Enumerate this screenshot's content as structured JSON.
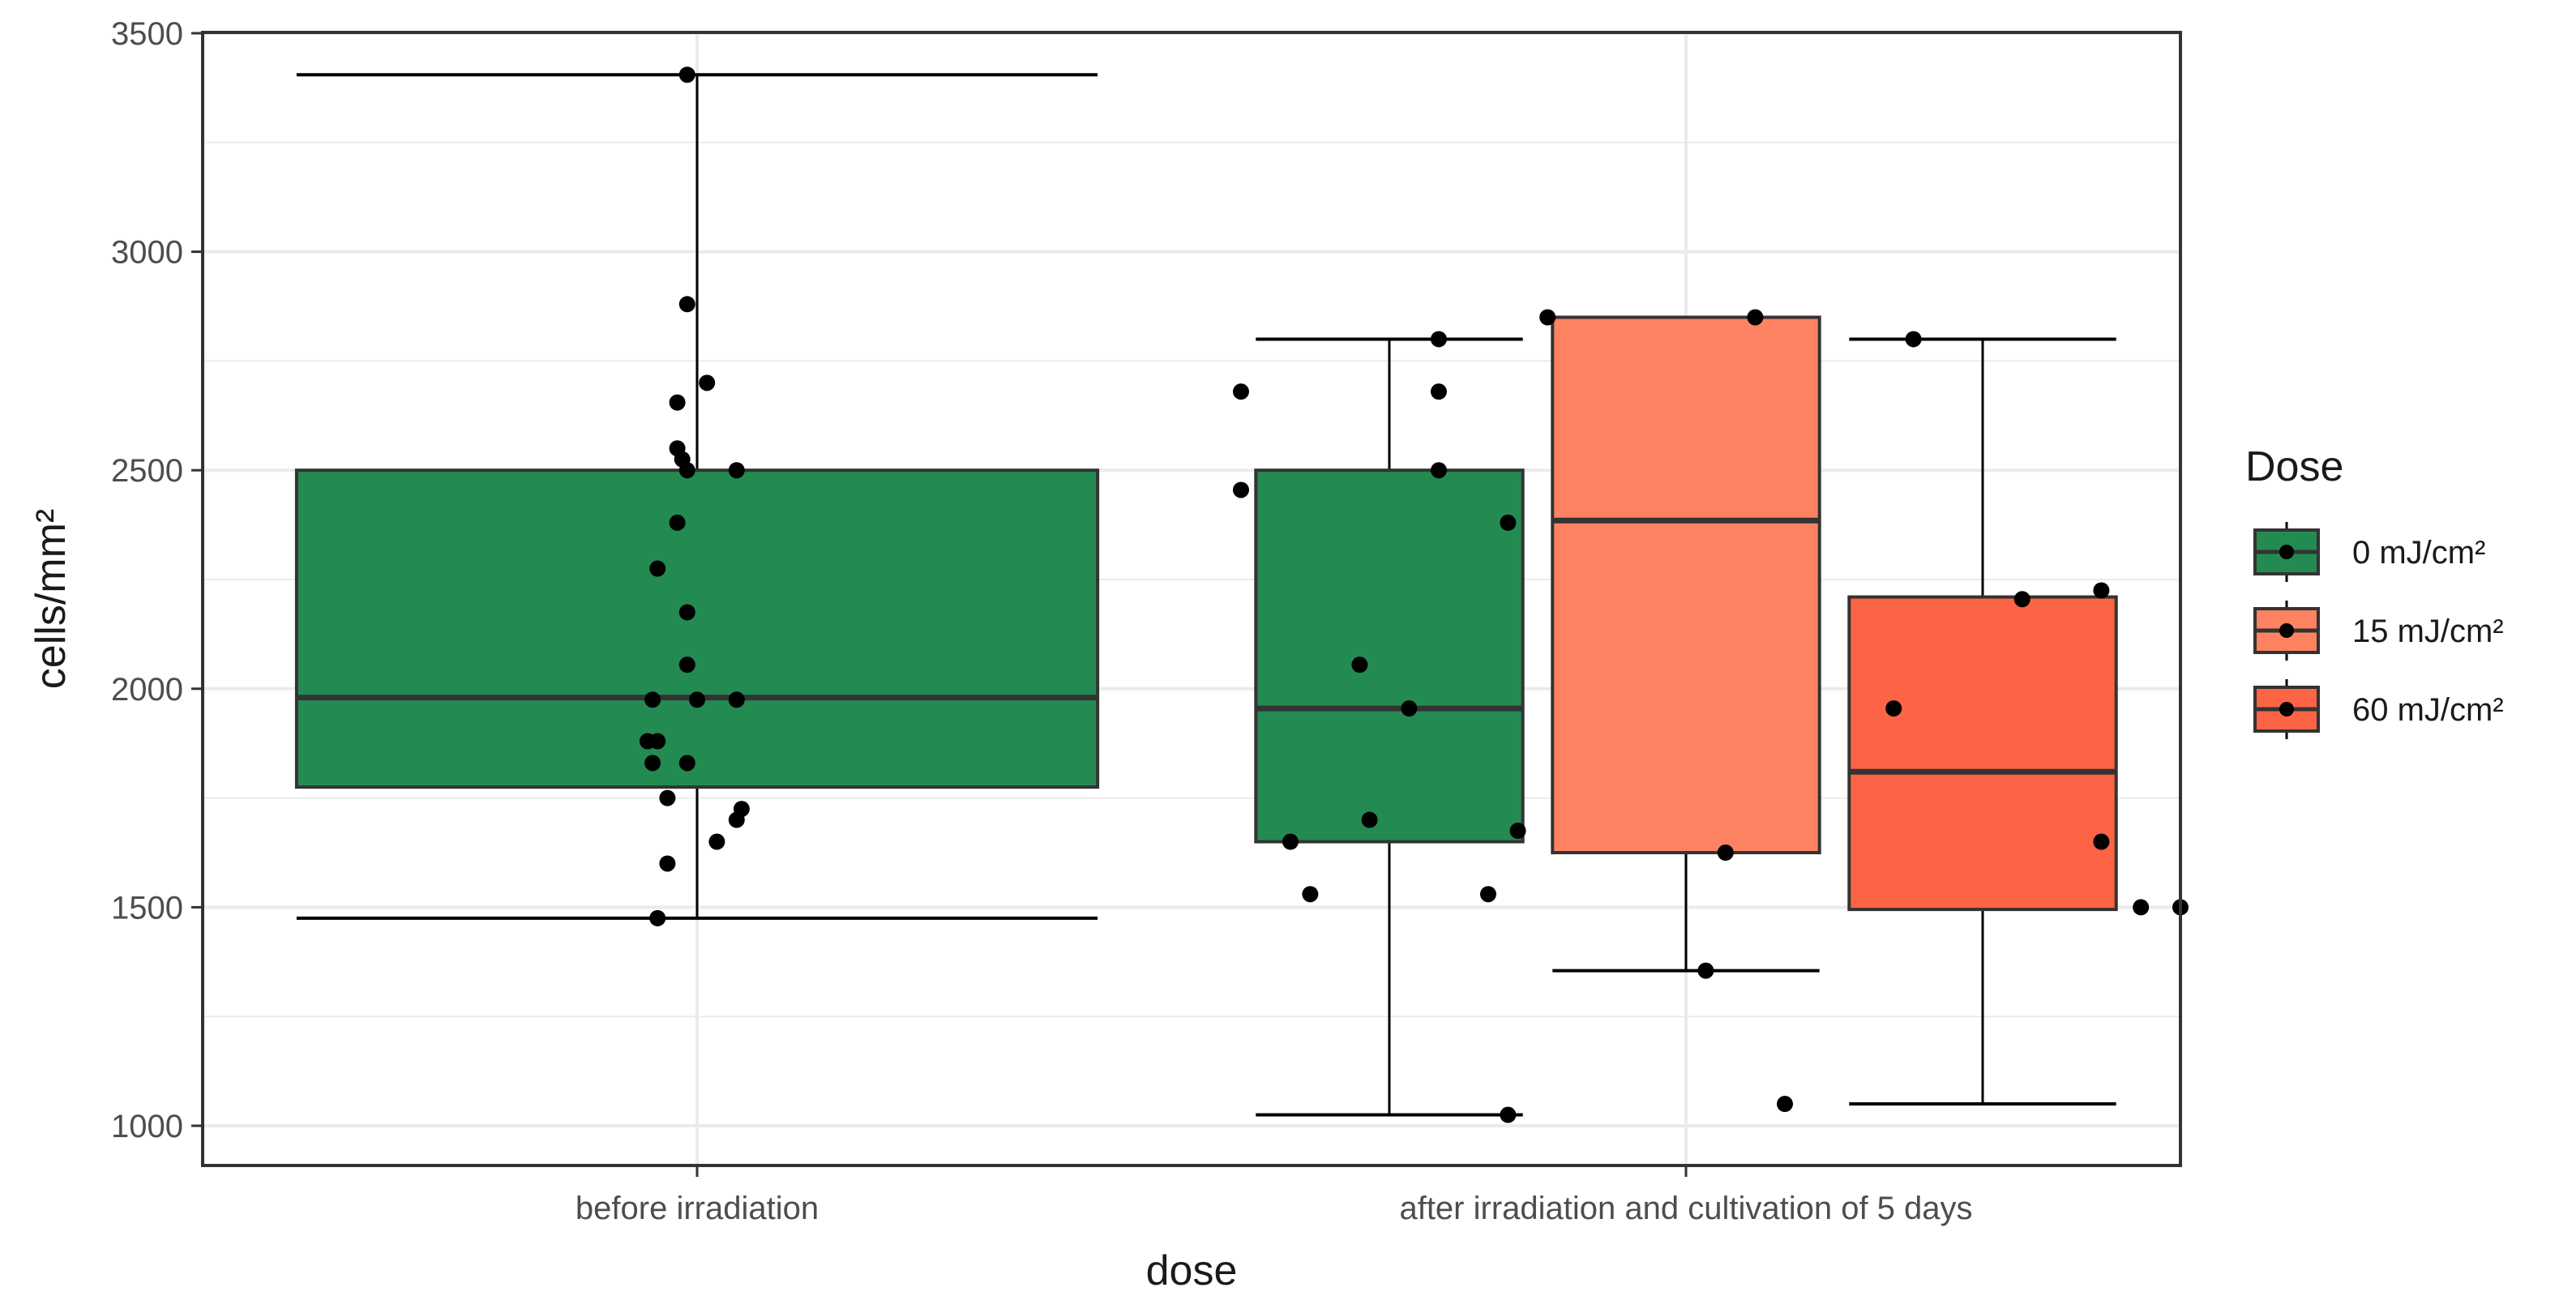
{
  "chart_data": {
    "type": "boxplot",
    "title": "",
    "xlabel": "dose",
    "ylabel": "cells/mm²",
    "ylim": [
      950,
      3500
    ],
    "yticks": [
      1000,
      1500,
      2000,
      2500,
      3000,
      3500
    ],
    "categories": [
      "before irradiation",
      "after irradiation and cultivation of 5 days"
    ],
    "legend": {
      "title": "Dose",
      "position": "right",
      "entries": [
        {
          "label": "0 mJ/cm²",
          "color": "#238b52"
        },
        {
          "label": "15 mJ/cm²",
          "color": "#fc8261"
        },
        {
          "label": "60 mJ/cm²",
          "color": "#fd6345"
        }
      ]
    },
    "grid": true,
    "boxes": [
      {
        "category": 0,
        "dose": 0,
        "slot": 0,
        "slots": 1,
        "min": 1475,
        "q1": 1775,
        "median": 1980,
        "q3": 2500,
        "max": 3405
      },
      {
        "category": 1,
        "dose": 0,
        "slot": 0,
        "slots": 3,
        "min": 1025,
        "q1": 1650,
        "median": 1955,
        "q3": 2500,
        "max": 2800
      },
      {
        "category": 1,
        "dose": 1,
        "slot": 1,
        "slots": 3,
        "min": 1355,
        "q1": 1625,
        "median": 2385,
        "q3": 2850,
        "max": 2850
      },
      {
        "category": 1,
        "dose": 2,
        "slot": 2,
        "slots": 3,
        "min": 1050,
        "q1": 1495,
        "median": 1810,
        "q3": 2210,
        "max": 2800
      }
    ],
    "points": [
      {
        "box": 0,
        "jitter": -0.01,
        "value": 3405
      },
      {
        "box": 0,
        "jitter": -0.01,
        "value": 2880
      },
      {
        "box": 0,
        "jitter": 0.01,
        "value": 2700
      },
      {
        "box": 0,
        "jitter": -0.02,
        "value": 2655
      },
      {
        "box": 0,
        "jitter": -0.02,
        "value": 2550
      },
      {
        "box": 0,
        "jitter": -0.015,
        "value": 2525
      },
      {
        "box": 0,
        "jitter": -0.01,
        "value": 2500
      },
      {
        "box": 0,
        "jitter": 0.04,
        "value": 2500
      },
      {
        "box": 0,
        "jitter": -0.02,
        "value": 2380
      },
      {
        "box": 0,
        "jitter": -0.04,
        "value": 2275
      },
      {
        "box": 0,
        "jitter": -0.01,
        "value": 2175
      },
      {
        "box": 0,
        "jitter": -0.01,
        "value": 2055
      },
      {
        "box": 0,
        "jitter": -0.045,
        "value": 1975
      },
      {
        "box": 0,
        "jitter": 0.0,
        "value": 1975
      },
      {
        "box": 0,
        "jitter": 0.04,
        "value": 1975
      },
      {
        "box": 0,
        "jitter": -0.05,
        "value": 1880
      },
      {
        "box": 0,
        "jitter": -0.04,
        "value": 1880
      },
      {
        "box": 0,
        "jitter": -0.045,
        "value": 1830
      },
      {
        "box": 0,
        "jitter": -0.01,
        "value": 1830
      },
      {
        "box": 0,
        "jitter": -0.03,
        "value": 1750
      },
      {
        "box": 0,
        "jitter": 0.045,
        "value": 1725
      },
      {
        "box": 0,
        "jitter": 0.04,
        "value": 1700
      },
      {
        "box": 0,
        "jitter": 0.02,
        "value": 1650
      },
      {
        "box": 0,
        "jitter": -0.03,
        "value": 1600
      },
      {
        "box": 0,
        "jitter": -0.04,
        "value": 1475
      },
      {
        "box": 1,
        "jitter": 0.05,
        "value": 2800
      },
      {
        "box": 1,
        "jitter": -0.15,
        "value": 2680
      },
      {
        "box": 1,
        "jitter": 0.05,
        "value": 2680
      },
      {
        "box": 1,
        "jitter": 0.05,
        "value": 2500
      },
      {
        "box": 1,
        "jitter": -0.15,
        "value": 2455
      },
      {
        "box": 1,
        "jitter": -0.03,
        "value": 2055
      },
      {
        "box": 1,
        "jitter": 0.02,
        "value": 1955
      },
      {
        "box": 1,
        "jitter": -0.02,
        "value": 1700
      },
      {
        "box": 1,
        "jitter": 0.13,
        "value": 1675
      },
      {
        "box": 1,
        "jitter": -0.1,
        "value": 1650
      },
      {
        "box": 1,
        "jitter": -0.08,
        "value": 1530
      },
      {
        "box": 1,
        "jitter": 0.1,
        "value": 1530
      },
      {
        "box": 1,
        "jitter": 0.12,
        "value": 1025
      },
      {
        "box": 2,
        "jitter": -0.14,
        "value": 2850
      },
      {
        "box": 2,
        "jitter": 0.07,
        "value": 2850
      },
      {
        "box": 2,
        "jitter": -0.18,
        "value": 2380
      },
      {
        "box": 2,
        "jitter": 0.04,
        "value": 1625
      },
      {
        "box": 2,
        "jitter": 0.02,
        "value": 1355
      },
      {
        "box": 3,
        "jitter": -0.07,
        "value": 2800
      },
      {
        "box": 3,
        "jitter": 0.12,
        "value": 2225
      },
      {
        "box": 3,
        "jitter": 0.04,
        "value": 2205
      },
      {
        "box": 3,
        "jitter": -0.09,
        "value": 1955
      },
      {
        "box": 3,
        "jitter": 0.12,
        "value": 1650
      },
      {
        "box": 3,
        "jitter": 0.16,
        "value": 1500
      },
      {
        "box": 3,
        "jitter": 0.2,
        "value": 1500
      },
      {
        "box": 3,
        "jitter": -0.2,
        "value": 1050
      }
    ]
  }
}
